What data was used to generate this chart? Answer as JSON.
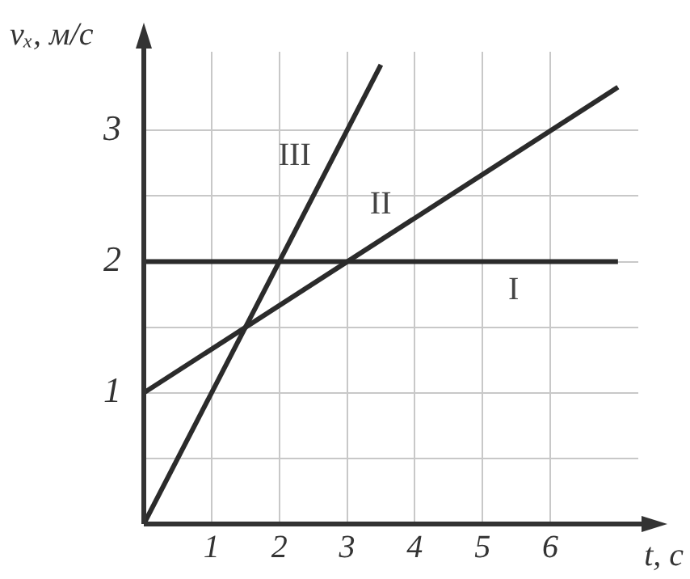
{
  "chart_data": {
    "type": "line",
    "xlabel": "t, с",
    "ylabel": "vₓ, м/с",
    "xlim": [
      0,
      7.3
    ],
    "ylim": [
      0,
      3.6
    ],
    "xticks": [
      {
        "value": 0,
        "label": null
      },
      1,
      2,
      3,
      4,
      5,
      6
    ],
    "yticks": [
      {
        "value": 0,
        "label": null
      },
      {
        "value": 0.5,
        "label": null
      },
      1,
      {
        "value": 1.5,
        "label": null
      },
      2,
      {
        "value": 2.5,
        "label": null
      },
      3
    ],
    "grid": true,
    "legend": false,
    "marker": "none",
    "line_style": "solid",
    "series": [
      {
        "name": "I",
        "color": "#2b2b2b",
        "x": [
          0,
          7
        ],
        "values": [
          2,
          2
        ]
      },
      {
        "name": "II",
        "color": "#2b2b2b",
        "x": [
          0,
          7
        ],
        "values": [
          1,
          3.33
        ]
      },
      {
        "name": "III",
        "color": "#2b2b2b",
        "x": [
          0,
          3.5
        ],
        "values": [
          0,
          3.5
        ]
      }
    ]
  }
}
